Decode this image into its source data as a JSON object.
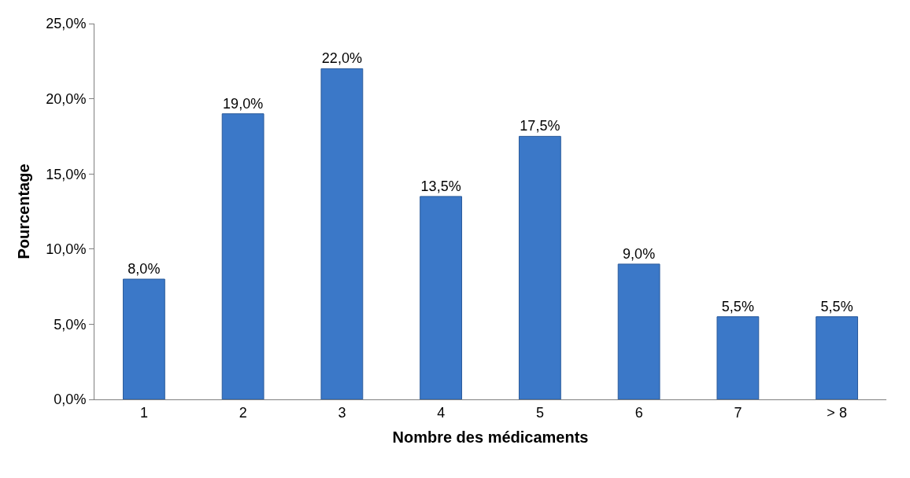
{
  "chart_data": {
    "type": "bar",
    "xlabel": "Nombre des médicaments",
    "ylabel": "Pourcentage",
    "categories": [
      "1",
      "2",
      "3",
      "4",
      "5",
      "6",
      "7",
      "> 8"
    ],
    "values": [
      8.0,
      19.0,
      22.0,
      13.5,
      17.5,
      9.0,
      5.5,
      5.5
    ],
    "value_labels": [
      "8,0%",
      "19,0%",
      "22,0%",
      "13,5%",
      "17,5%",
      "9,0%",
      "5,5%",
      "5,5%"
    ],
    "color": "#3b78c8",
    "ylim": [
      0,
      25
    ],
    "yticks": [
      {
        "value": 0,
        "label": "0,0%"
      },
      {
        "value": 5,
        "label": "5,0%"
      },
      {
        "value": 10,
        "label": "10,0%"
      },
      {
        "value": 15,
        "label": "15,0%"
      },
      {
        "value": 20,
        "label": "20,0%"
      },
      {
        "value": 25,
        "label": "25,0%"
      }
    ],
    "legend": false
  }
}
